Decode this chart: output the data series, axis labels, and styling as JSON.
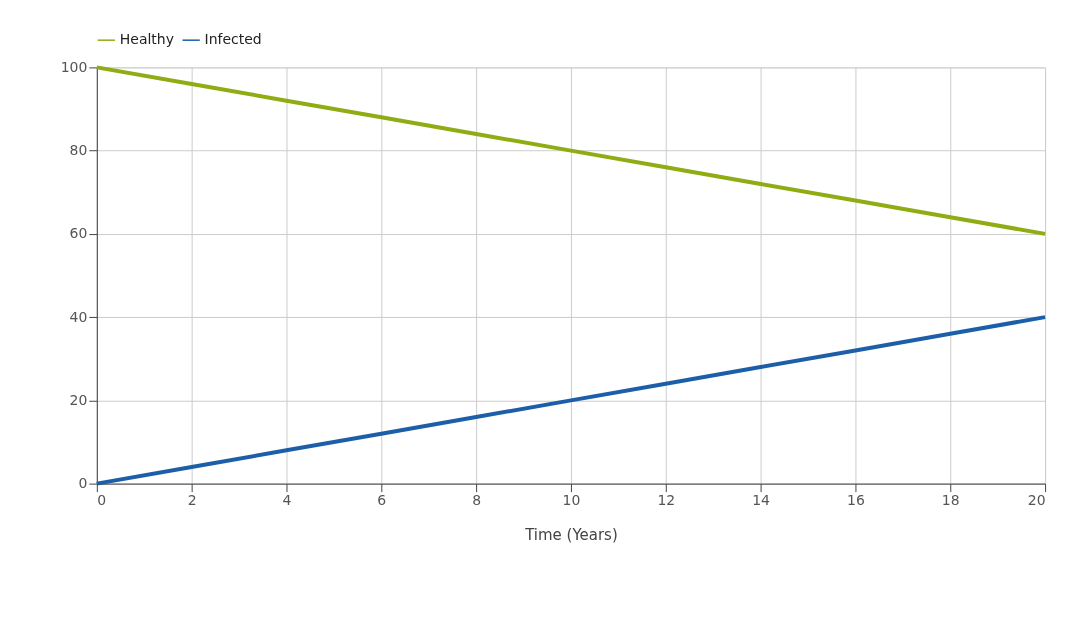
{
  "chart_data": {
    "type": "line",
    "xlabel": "Time (Years)",
    "x": [
      0,
      2,
      4,
      6,
      8,
      10,
      12,
      14,
      16,
      18,
      20
    ],
    "series": [
      {
        "name": "Healthy",
        "color": "#8fac13",
        "values": [
          100,
          96,
          92,
          88,
          84,
          80,
          76,
          72,
          68,
          64,
          60
        ]
      },
      {
        "name": "Infected",
        "color": "#1c5fa8",
        "values": [
          0,
          4,
          8,
          12,
          16,
          20,
          24,
          28,
          32,
          36,
          40
        ]
      }
    ],
    "xlim": [
      0,
      20
    ],
    "xticks": [
      0,
      2,
      4,
      6,
      8,
      10,
      12,
      14,
      16,
      18,
      20
    ],
    "ylim": [
      0,
      100
    ],
    "yticks": [
      0,
      20,
      40,
      60,
      80,
      100
    ],
    "grid": true,
    "legend": "top",
    "marker": "none",
    "line_style": "solid"
  }
}
